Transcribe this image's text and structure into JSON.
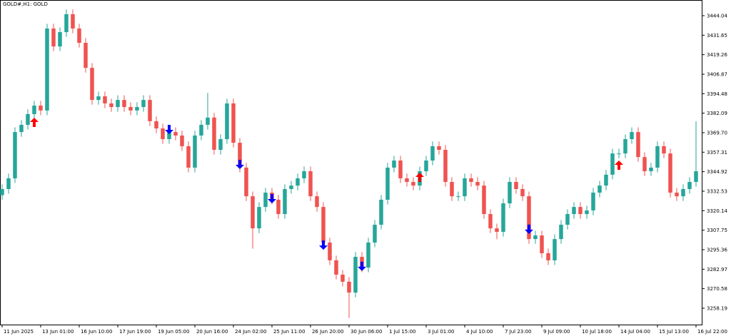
{
  "chart_data": {
    "type": "candlestick",
    "title": "GOLD#,H1:  GOLD",
    "up_color": "#26a69a",
    "down_color": "#ef5350",
    "xlim": [
      -0.33,
      108.89
    ],
    "xticks": [
      {
        "value": 0,
        "label": "11 Jun 2025"
      },
      {
        "value": 6,
        "label": "13 Jun 01:00"
      },
      {
        "value": 12,
        "label": "16 Jun 10:00"
      },
      {
        "value": 18,
        "label": "17 Jun 19:00"
      },
      {
        "value": 24,
        "label": "19 Jun 05:00"
      },
      {
        "value": 30,
        "label": "20 Jun 16:00"
      },
      {
        "value": 36,
        "label": "24 Jun 02:00"
      },
      {
        "value": 42,
        "label": "25 Jun 11:00"
      },
      {
        "value": 48,
        "label": "26 Jun 20:00"
      },
      {
        "value": 54,
        "label": "30 Jun 06:00"
      },
      {
        "value": 60,
        "label": "1 Jul 15:00"
      },
      {
        "value": 66,
        "label": "3 Jul 01:00"
      },
      {
        "value": 72,
        "label": "4 Jul 10:00"
      },
      {
        "value": 78,
        "label": "7 Jul 23:00"
      },
      {
        "value": 84,
        "label": "9 Jul 09:00"
      },
      {
        "value": 90,
        "label": "10 Jul 18:00"
      },
      {
        "value": 96,
        "label": "14 Jul 04:00"
      },
      {
        "value": 102,
        "label": "15 Jul 13:00"
      },
      {
        "value": 108,
        "label": "16 Jul 22:00"
      }
    ],
    "ylim": [
      3247.76,
      3454.01
    ],
    "yticks": [
      3444.04,
      3431.65,
      3419.26,
      3406.87,
      3394.48,
      3382.09,
      {
        "value": 3369.7,
        "label": "3369.70"
      },
      3357.31,
      3344.92,
      3332.53,
      3320.14,
      3307.75,
      3295.36,
      3282.97,
      3270.58,
      3258.19
    ],
    "open": [
      3330.0,
      3333.9,
      3340.7,
      3370.1,
      3374.7,
      3381.5,
      3386.9,
      3383.8,
      3435.9,
      3424.5,
      3433.6,
      3445.0,
      3435.9,
      3426.8,
      3410.9,
      3390.5,
      3392.8,
      3388.3,
      3386.0,
      3390.5,
      3386.0,
      3383.8,
      3386.0,
      3390.5,
      3377.0,
      3372.4,
      3365.6,
      3370.1,
      3367.9,
      3361.1,
      3347.5,
      3367.9,
      3374.7,
      3379.3,
      3358.8,
      3365.6,
      3388.3,
      3363.3,
      3347.5,
      3329.3,
      3308.9,
      3322.5,
      3331.6,
      3327.1,
      3318.0,
      3333.9,
      3336.1,
      3340.7,
      3345.2,
      3329.3,
      3322.5,
      3299.9,
      3288.6,
      3279.5,
      3275.0,
      3268.1,
      3290.8,
      3284.0,
      3299.9,
      3311.2,
      3327.1,
      3347.5,
      3352.0,
      3340.7,
      3338.4,
      3336.1,
      3345.2,
      3352.0,
      3361.1,
      3358.8,
      3338.4,
      3329.3,
      3329.3,
      3340.7,
      3338.4,
      3336.1,
      3318.0,
      3308.9,
      3306.7,
      3324.8,
      3338.4,
      3333.9,
      3329.3,
      3302.1,
      3304.4,
      3293.1,
      3288.6,
      3302.1,
      3311.2,
      3318.0,
      3322.5,
      3318.0,
      3320.3,
      3331.6,
      3336.1,
      3343.0,
      3356.5,
      3356.5,
      3365.6,
      3370.1,
      3354.2,
      3345.2,
      3347.5,
      3361.1,
      3356.5,
      3331.6,
      3329.3,
      3333.9,
      3338.4
    ],
    "high": [
      3336.9,
      3343.7,
      3373.1,
      3377.7,
      3384.5,
      3389.9,
      3389.9,
      3438.9,
      3438.9,
      3436.6,
      3448.0,
      3448.0,
      3438.9,
      3429.8,
      3413.9,
      3395.8,
      3395.8,
      3391.3,
      3393.5,
      3393.5,
      3389.0,
      3389.0,
      3393.5,
      3393.5,
      3380.0,
      3375.4,
      3373.1,
      3373.1,
      3370.9,
      3364.1,
      3370.9,
      3377.7,
      3395.0,
      3382.3,
      3368.6,
      3391.3,
      3391.3,
      3366.3,
      3350.5,
      3332.3,
      3325.5,
      3334.6,
      3334.6,
      3330.1,
      3336.9,
      3339.1,
      3343.7,
      3348.2,
      3348.2,
      3332.3,
      3325.5,
      3302.9,
      3291.6,
      3282.5,
      3278.0,
      3293.8,
      3293.8,
      3302.9,
      3314.2,
      3330.1,
      3350.5,
      3355.0,
      3355.0,
      3343.7,
      3341.4,
      3348.2,
      3355.0,
      3364.1,
      3364.1,
      3361.8,
      3341.4,
      3332.3,
      3343.7,
      3343.7,
      3341.4,
      3339.1,
      3321.0,
      3311.9,
      3327.8,
      3341.4,
      3341.4,
      3336.9,
      3332.3,
      3307.4,
      3307.4,
      3296.1,
      3305.1,
      3314.2,
      3321.0,
      3325.5,
      3325.5,
      3323.3,
      3334.6,
      3339.1,
      3346.0,
      3359.5,
      3359.5,
      3368.6,
      3373.1,
      3373.1,
      3357.2,
      3350.5,
      3364.1,
      3364.1,
      3359.5,
      3334.6,
      3336.9,
      3341.4,
      3377.0
    ],
    "low": [
      3327.0,
      3330.9,
      3337.7,
      3367.1,
      3371.7,
      3378.5,
      3380.8,
      3380.8,
      3421.5,
      3421.5,
      3430.6,
      3432.9,
      3423.8,
      3407.9,
      3387.5,
      3387.5,
      3385.3,
      3383.0,
      3383.0,
      3383.0,
      3380.8,
      3380.8,
      3383.0,
      3374.0,
      3369.4,
      3362.6,
      3362.6,
      3364.9,
      3358.1,
      3344.5,
      3344.5,
      3364.9,
      3371.7,
      3355.8,
      3355.8,
      3362.6,
      3360.3,
      3344.5,
      3326.3,
      3296.0,
      3305.9,
      3319.5,
      3324.1,
      3315.0,
      3315.0,
      3330.9,
      3333.1,
      3337.7,
      3326.3,
      3319.5,
      3296.9,
      3285.6,
      3276.5,
      3272.0,
      3252.0,
      3265.1,
      3281.0,
      3281.0,
      3296.9,
      3308.2,
      3324.1,
      3344.5,
      3337.7,
      3335.4,
      3333.1,
      3333.1,
      3342.2,
      3349.0,
      3355.8,
      3335.4,
      3326.3,
      3326.3,
      3326.3,
      3335.4,
      3333.1,
      3315.0,
      3305.9,
      3302.0,
      3303.7,
      3321.8,
      3330.9,
      3326.3,
      3299.1,
      3299.1,
      3290.1,
      3285.6,
      3285.6,
      3299.1,
      3308.2,
      3315.0,
      3315.0,
      3315.0,
      3317.3,
      3328.6,
      3333.1,
      3340.0,
      3353.5,
      3353.5,
      3362.6,
      3351.2,
      3342.2,
      3342.2,
      3344.5,
      3353.5,
      3328.6,
      3326.3,
      3326.3,
      3330.9,
      3335.4
    ],
    "close": [
      3333.9,
      3340.7,
      3370.1,
      3374.7,
      3381.5,
      3386.9,
      3383.8,
      3435.9,
      3424.5,
      3433.6,
      3445.0,
      3435.9,
      3426.8,
      3410.9,
      3390.5,
      3392.8,
      3388.3,
      3386.0,
      3390.5,
      3386.0,
      3383.8,
      3386.0,
      3390.5,
      3377.0,
      3372.4,
      3365.6,
      3370.1,
      3367.9,
      3361.1,
      3347.5,
      3367.9,
      3374.7,
      3379.3,
      3358.8,
      3365.6,
      3388.3,
      3363.3,
      3347.5,
      3329.3,
      3308.9,
      3322.5,
      3331.6,
      3327.1,
      3318.0,
      3333.9,
      3336.1,
      3340.7,
      3345.2,
      3329.3,
      3322.5,
      3299.9,
      3288.6,
      3279.5,
      3275.0,
      3268.1,
      3290.8,
      3284.0,
      3299.9,
      3311.2,
      3327.1,
      3347.5,
      3352.0,
      3340.7,
      3338.4,
      3336.1,
      3345.2,
      3352.0,
      3361.1,
      3358.8,
      3338.4,
      3329.3,
      3329.3,
      3340.7,
      3338.4,
      3336.1,
      3318.0,
      3308.9,
      3306.7,
      3324.8,
      3338.4,
      3333.9,
      3329.3,
      3302.1,
      3304.4,
      3293.1,
      3288.6,
      3302.1,
      3311.2,
      3318.0,
      3322.5,
      3318.0,
      3320.3,
      3331.6,
      3336.1,
      3343.0,
      3356.5,
      3356.5,
      3365.6,
      3370.1,
      3354.2,
      3345.2,
      3347.5,
      3361.1,
      3356.5,
      3331.6,
      3329.3,
      3333.9,
      3338.4,
      3345.2
    ],
    "buy_signals": {
      "color": "#ff0000",
      "x": [
        5,
        65,
        96
      ],
      "y": [
        3379.2,
        3344.3,
        3352.0
      ]
    },
    "sell_signals": {
      "color": "#0000ff",
      "x": [
        26,
        37,
        42,
        50,
        56,
        82
      ],
      "y": [
        3368.8,
        3346.6,
        3324.8,
        3295.3,
        3281.8,
        3305.4
      ]
    }
  }
}
